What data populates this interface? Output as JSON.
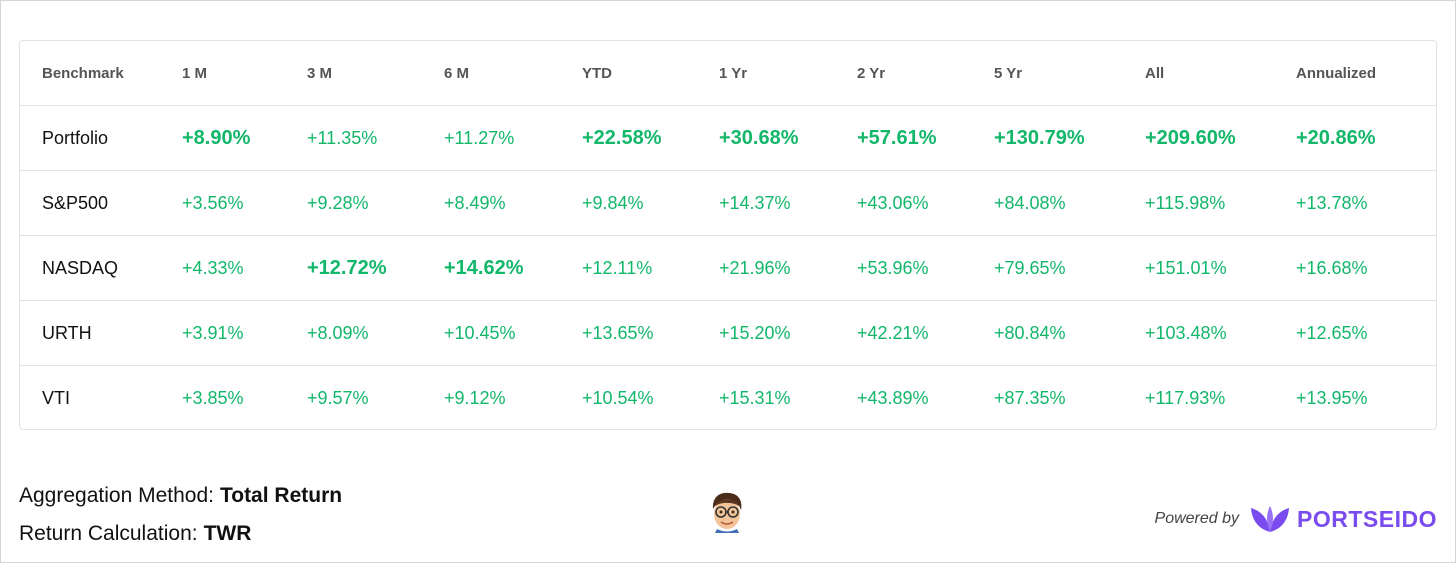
{
  "table": {
    "headers": [
      "Benchmark",
      "1 M",
      "3 M",
      "6 M",
      "YTD",
      "1 Yr",
      "2 Yr",
      "5 Yr",
      "All",
      "Annualized"
    ],
    "rows": [
      {
        "name": "Portfolio",
        "values": [
          "+8.90%",
          "+11.35%",
          "+11.27%",
          "+22.58%",
          "+30.68%",
          "+57.61%",
          "+130.79%",
          "+209.60%",
          "+20.86%"
        ]
      },
      {
        "name": "S&P500",
        "values": [
          "+3.56%",
          "+9.28%",
          "+8.49%",
          "+9.84%",
          "+14.37%",
          "+43.06%",
          "+84.08%",
          "+115.98%",
          "+13.78%"
        ]
      },
      {
        "name": "NASDAQ",
        "values": [
          "+4.33%",
          "+12.72%",
          "+14.62%",
          "+12.11%",
          "+21.96%",
          "+53.96%",
          "+79.65%",
          "+151.01%",
          "+16.68%"
        ]
      },
      {
        "name": "URTH",
        "values": [
          "+3.91%",
          "+8.09%",
          "+10.45%",
          "+13.65%",
          "+15.20%",
          "+42.21%",
          "+80.84%",
          "+103.48%",
          "+12.65%"
        ]
      },
      {
        "name": "VTI",
        "values": [
          "+3.85%",
          "+9.57%",
          "+9.12%",
          "+10.54%",
          "+15.31%",
          "+43.89%",
          "+87.35%",
          "+117.93%",
          "+13.95%"
        ]
      }
    ],
    "best": [
      [
        0,
        0
      ],
      [
        2,
        1
      ],
      [
        2,
        2
      ],
      [
        0,
        3
      ],
      [
        0,
        4
      ],
      [
        0,
        5
      ],
      [
        0,
        6
      ],
      [
        0,
        7
      ],
      [
        0,
        8
      ]
    ],
    "positive_color": "#12b76a"
  },
  "footer": {
    "aggregation_label": "Aggregation Method:",
    "aggregation_value": "Total Return",
    "calculation_label": "Return Calculation:",
    "calculation_value": "TWR"
  },
  "avatar": {
    "icon": "memoji-avatar-icon"
  },
  "branding": {
    "powered_by": "Powered by",
    "name": "PORTSEIDO",
    "logo_icon": "portseido-leaf-logo-icon",
    "brand_color": "#7a4cf0"
  }
}
